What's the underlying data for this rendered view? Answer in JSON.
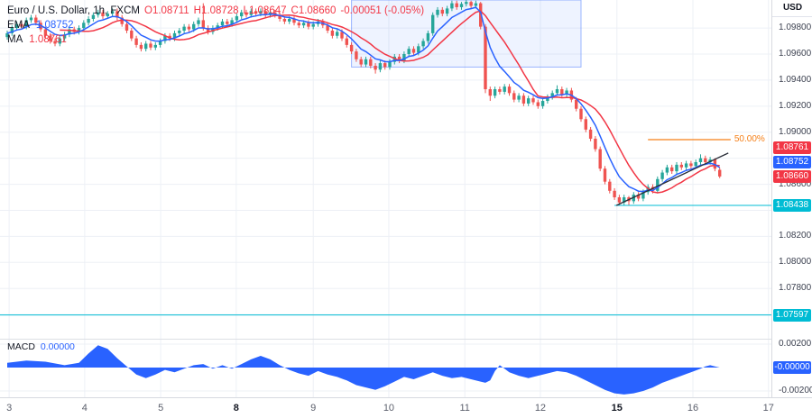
{
  "legend": {
    "title": "Euro / U.S. Dollar, 1h, FXCM",
    "ohlc": [
      "O1.08711",
      "H1.08728",
      "L1.08647",
      "C1.08660",
      "-0.00051 (-0.05%)"
    ],
    "ohlc_color": "#f23645",
    "ema_label": "EMA",
    "ema_value": "1.08752",
    "ema_color": "#2962ff",
    "ma_label": "MA",
    "ma_value": "1.08761",
    "ma_color": "#f23645"
  },
  "price_axis": {
    "currency": "USD",
    "labels": [
      {
        "text": "1.09800",
        "price": 1.098
      },
      {
        "text": "1.09600",
        "price": 1.096
      },
      {
        "text": "1.09400",
        "price": 1.094
      },
      {
        "text": "1.09200",
        "price": 1.092
      },
      {
        "text": "1.09000",
        "price": 1.09
      },
      {
        "text": "1.08800",
        "price": 1.088,
        "hidden": true
      },
      {
        "text": "1.08600",
        "price": 1.086
      },
      {
        "text": "1.08400",
        "price": 1.084,
        "hidden": true
      },
      {
        "text": "1.08200",
        "price": 1.082
      },
      {
        "text": "1.08000",
        "price": 1.08
      },
      {
        "text": "1.07800",
        "price": 1.078
      },
      {
        "text": "1.07600",
        "price": 1.076,
        "hidden": true
      }
    ],
    "tags": [
      {
        "text": "1.08761",
        "price": 1.08761,
        "color": "#f23645",
        "name": "ma-price-tag"
      },
      {
        "text": "1.08752",
        "price": 1.08752,
        "color": "#2962ff",
        "name": "ema-price-tag"
      },
      {
        "text": "1.08660",
        "price": 1.0866,
        "color": "#f23645",
        "name": "last-price-tag"
      },
      {
        "text": "1.08438",
        "price": 1.08438,
        "color": "#00bcd4",
        "name": "horizontal-line-price-tag"
      },
      {
        "text": "1.07597",
        "price": 1.07597,
        "color": "#00bcd4",
        "name": "horizontal-line2-price-tag"
      }
    ]
  },
  "macd_pane": {
    "label": "MACD",
    "value": "0.00000",
    "value_color": "#2962ff",
    "axis_labels": [
      {
        "text": "0.00200",
        "value": 0.002
      },
      {
        "text": "-0.00200",
        "value": -0.002
      }
    ],
    "tag": {
      "text": "-0.00000",
      "value": 0,
      "color": "#2962ff"
    }
  },
  "time_axis": {
    "labels": [
      {
        "text": "3",
        "i": 0.4
      },
      {
        "text": "4",
        "i": 16.2
      },
      {
        "text": "5",
        "i": 32.1
      },
      {
        "text": "8",
        "i": 47.9,
        "bold": true
      },
      {
        "text": "9",
        "i": 64
      },
      {
        "text": "10",
        "i": 79.8
      },
      {
        "text": "11",
        "i": 95.7
      },
      {
        "text": "12",
        "i": 111.5
      },
      {
        "text": "15",
        "i": 127.5,
        "bold": true
      },
      {
        "text": "16",
        "i": 143.4
      },
      {
        "text": "17",
        "i": 159.2
      }
    ]
  },
  "chart_data": {
    "type": "candlestick",
    "symbol": "EUR/USD",
    "interval": "1h",
    "exchange": "FXCM",
    "ylim": [
      1.076,
      1.10015
    ],
    "ema_period": 7,
    "ma_period": 12,
    "colors": {
      "up": "#26a69a",
      "down": "#ef5350",
      "ema": "#2962ff",
      "ma": "#f23645",
      "macd": "#2962ff",
      "grid": "#edf0f6"
    },
    "candles": [
      [
        1.0973,
        1.0978,
        1.0971,
        1.0976
      ],
      [
        1.0976,
        1.0982,
        1.0974,
        1.098
      ],
      [
        1.098,
        1.0985,
        1.0978,
        1.0983
      ],
      [
        1.0983,
        1.0985,
        1.0979,
        1.0981
      ],
      [
        1.0981,
        1.0988,
        1.0979,
        1.0986
      ],
      [
        1.0986,
        1.099,
        1.0984,
        1.0988
      ],
      [
        1.0988,
        1.099,
        1.0982,
        1.0984
      ],
      [
        1.0984,
        1.0986,
        1.0977,
        1.0979
      ],
      [
        1.0979,
        1.0981,
        1.0972,
        1.0974
      ],
      [
        1.0974,
        1.0976,
        1.0968,
        1.097
      ],
      [
        1.097,
        1.0972,
        1.0966,
        1.0968
      ],
      [
        1.0968,
        1.0974,
        1.0966,
        1.0972
      ],
      [
        1.0972,
        1.0977,
        1.097,
        1.0975
      ],
      [
        1.0975,
        1.0981,
        1.0973,
        1.0979
      ],
      [
        1.0979,
        1.0981,
        1.0975,
        1.0977
      ],
      [
        1.0977,
        1.0982,
        1.0975,
        1.098
      ],
      [
        1.098,
        1.0986,
        1.0978,
        1.0984
      ],
      [
        1.0984,
        1.0989,
        1.0982,
        1.0987
      ],
      [
        1.0987,
        1.0992,
        1.0985,
        1.099
      ],
      [
        1.099,
        1.0994,
        1.0988,
        1.0992
      ],
      [
        1.0992,
        1.0994,
        1.0987,
        1.0989
      ],
      [
        1.0989,
        1.0993,
        1.0987,
        1.0991
      ],
      [
        1.0991,
        1.0995,
        1.0989,
        1.0993
      ],
      [
        1.0993,
        1.0995,
        1.0986,
        1.0988
      ],
      [
        1.0988,
        1.099,
        1.0981,
        1.0983
      ],
      [
        1.0983,
        1.0985,
        1.0976,
        1.0978
      ],
      [
        1.0978,
        1.098,
        1.097,
        1.0972
      ],
      [
        1.0972,
        1.0974,
        1.0965,
        1.0967
      ],
      [
        1.0967,
        1.0969,
        1.0962,
        1.0964
      ],
      [
        1.0964,
        1.097,
        1.0962,
        1.0968
      ],
      [
        1.0968,
        1.097,
        1.0963,
        1.0965
      ],
      [
        1.0965,
        1.0969,
        1.0963,
        1.0967
      ],
      [
        1.0967,
        1.0972,
        1.0965,
        1.097
      ],
      [
        1.097,
        1.0976,
        1.0968,
        1.0974
      ],
      [
        1.0974,
        1.0976,
        1.097,
        1.0972
      ],
      [
        1.0972,
        1.0978,
        1.097,
        1.0976
      ],
      [
        1.0976,
        1.098,
        1.0974,
        1.0978
      ],
      [
        1.0978,
        1.0983,
        1.0976,
        1.0981
      ],
      [
        1.0981,
        1.0983,
        1.0977,
        1.0979
      ],
      [
        1.0979,
        1.0985,
        1.0977,
        1.0983
      ],
      [
        1.0983,
        1.0988,
        1.0981,
        1.0986
      ],
      [
        1.0986,
        1.0999,
        1.0978,
        1.098
      ],
      [
        1.098,
        1.0982,
        1.0975,
        1.0977
      ],
      [
        1.0977,
        1.0982,
        1.0975,
        1.098
      ],
      [
        1.098,
        1.0984,
        1.0978,
        1.0982
      ],
      [
        1.0982,
        1.0987,
        1.098,
        1.0985
      ],
      [
        1.0985,
        1.0987,
        1.0981,
        1.0983
      ],
      [
        1.0983,
        1.0988,
        1.0981,
        1.0986
      ],
      [
        1.0986,
        1.0991,
        1.0984,
        1.0989
      ],
      [
        1.0989,
        1.0994,
        1.0987,
        1.0992
      ],
      [
        1.0992,
        1.0994,
        1.0988,
        1.099
      ],
      [
        1.099,
        1.0995,
        1.0988,
        1.0993
      ],
      [
        1.0993,
        1.0995,
        1.0989,
        1.0991
      ],
      [
        1.0991,
        1.0995,
        1.0989,
        1.0993
      ],
      [
        1.0993,
        1.0995,
        1.0988,
        1.099
      ],
      [
        1.099,
        1.0994,
        1.0988,
        1.0992
      ],
      [
        1.0992,
        1.0994,
        1.0988,
        1.099
      ],
      [
        1.099,
        1.0992,
        1.0985,
        1.0987
      ],
      [
        1.0987,
        1.0989,
        1.0983,
        1.0985
      ],
      [
        1.0985,
        1.0989,
        1.0983,
        1.0987
      ],
      [
        1.0987,
        1.0989,
        1.0982,
        1.0984
      ],
      [
        1.0984,
        1.0986,
        1.098,
        1.0982
      ],
      [
        1.0982,
        1.0986,
        1.098,
        1.0984
      ],
      [
        1.0984,
        1.0986,
        1.0979,
        1.0981
      ],
      [
        1.0981,
        1.0985,
        1.0979,
        1.0983
      ],
      [
        1.0983,
        1.0987,
        1.0981,
        1.0985
      ],
      [
        1.0985,
        1.0987,
        1.098,
        1.0982
      ],
      [
        1.0982,
        1.0984,
        1.0976,
        1.0978
      ],
      [
        1.0978,
        1.098,
        1.0972,
        1.0974
      ],
      [
        1.0974,
        1.0979,
        1.0972,
        1.0977
      ],
      [
        1.0977,
        1.0979,
        1.097,
        1.0972
      ],
      [
        1.0972,
        1.0974,
        1.0965,
        1.0967
      ],
      [
        1.0967,
        1.0969,
        1.096,
        1.0962
      ],
      [
        1.0962,
        1.0964,
        1.0954,
        1.0956
      ],
      [
        1.0956,
        1.0958,
        1.095,
        1.0952
      ],
      [
        1.0952,
        1.0958,
        1.095,
        1.0956
      ],
      [
        1.0956,
        1.0958,
        1.0949,
        1.0951
      ],
      [
        1.0951,
        1.0953,
        1.0945,
        1.0948
      ],
      [
        1.0948,
        1.0955,
        1.0946,
        1.0953
      ],
      [
        1.0953,
        1.0955,
        1.0948,
        1.095
      ],
      [
        1.095,
        1.0956,
        1.0948,
        1.0954
      ],
      [
        1.0954,
        1.096,
        1.0952,
        1.0958
      ],
      [
        1.0958,
        1.096,
        1.0953,
        1.0955
      ],
      [
        1.0955,
        1.0962,
        1.0953,
        1.096
      ],
      [
        1.096,
        1.0966,
        1.0958,
        1.0964
      ],
      [
        1.0964,
        1.0966,
        1.0959,
        1.0961
      ],
      [
        1.0961,
        1.0968,
        1.0959,
        1.0966
      ],
      [
        1.0966,
        1.0972,
        1.0964,
        1.097
      ],
      [
        1.097,
        1.0978,
        1.0968,
        1.0976
      ],
      [
        1.0976,
        1.0992,
        1.0974,
        1.099
      ],
      [
        1.099,
        1.0996,
        1.0988,
        1.0994
      ],
      [
        1.0994,
        1.0996,
        1.0989,
        1.0991
      ],
      [
        1.0991,
        1.0997,
        1.0989,
        1.0995
      ],
      [
        1.0995,
        1.1001,
        1.0993,
        1.0999
      ],
      [
        1.0999,
        1.1001,
        1.0994,
        1.0996
      ],
      [
        1.0996,
        1.1,
        1.0994,
        1.09985
      ],
      [
        1.09985,
        1.10015,
        1.09965,
        1.1
      ],
      [
        1.1,
        1.1001,
        1.0995,
        1.0997
      ],
      [
        1.0997,
        1.1001,
        1.0995,
        1.0999
      ],
      [
        1.0999,
        1.1,
        1.0979,
        1.0981
      ],
      [
        1.0981,
        1.0983,
        1.093,
        1.0933
      ],
      [
        1.0933,
        1.0935,
        1.0924,
        1.0928
      ],
      [
        1.0928,
        1.0935,
        1.0926,
        1.0933
      ],
      [
        1.0933,
        1.0935,
        1.0929,
        1.0931
      ],
      [
        1.0931,
        1.0937,
        1.0929,
        1.0935
      ],
      [
        1.0935,
        1.0937,
        1.0928,
        1.093
      ],
      [
        1.093,
        1.0932,
        1.0923,
        1.0925
      ],
      [
        1.0925,
        1.093,
        1.0923,
        1.0928
      ],
      [
        1.0928,
        1.093,
        1.092,
        1.0922
      ],
      [
        1.0922,
        1.0928,
        1.092,
        1.0926
      ],
      [
        1.0926,
        1.0928,
        1.0921,
        1.0923
      ],
      [
        1.0923,
        1.0925,
        1.0918,
        1.092
      ],
      [
        1.092,
        1.0926,
        1.0918,
        1.0924
      ],
      [
        1.0924,
        1.0929,
        1.0922,
        1.0927
      ],
      [
        1.0927,
        1.0932,
        1.0925,
        1.093
      ],
      [
        1.093,
        1.0936,
        1.0928,
        1.0933
      ],
      [
        1.0933,
        1.0935,
        1.0927,
        1.0929
      ],
      [
        1.0929,
        1.0934,
        1.0927,
        1.0932
      ],
      [
        1.0932,
        1.0934,
        1.0923,
        1.0925
      ],
      [
        1.0925,
        1.0927,
        1.0916,
        1.0918
      ],
      [
        1.0918,
        1.092,
        1.0908,
        1.091
      ],
      [
        1.091,
        1.0912,
        1.09,
        1.0902
      ],
      [
        1.0902,
        1.0904,
        1.0893,
        1.0895
      ],
      [
        1.0895,
        1.0897,
        1.0885,
        1.0887
      ],
      [
        1.0887,
        1.0889,
        1.087,
        1.0872
      ],
      [
        1.0872,
        1.0874,
        1.086,
        1.0862
      ],
      [
        1.0862,
        1.0864,
        1.0853,
        1.0855
      ],
      [
        1.0855,
        1.0857,
        1.0848,
        1.085
      ],
      [
        1.085,
        1.0852,
        1.08438,
        1.0846
      ],
      [
        1.0846,
        1.0852,
        1.0844,
        1.085
      ],
      [
        1.085,
        1.0851,
        1.0844,
        1.0847
      ],
      [
        1.0847,
        1.0854,
        1.0845,
        1.0852
      ],
      [
        1.0852,
        1.0854,
        1.0847,
        1.0849
      ],
      [
        1.0849,
        1.0856,
        1.0847,
        1.0854
      ],
      [
        1.0854,
        1.086,
        1.0852,
        1.0858
      ],
      [
        1.0858,
        1.086,
        1.0853,
        1.0855
      ],
      [
        1.0855,
        1.0866,
        1.0853,
        1.0864
      ],
      [
        1.0864,
        1.0871,
        1.0862,
        1.0869
      ],
      [
        1.0869,
        1.0875,
        1.0867,
        1.0873
      ],
      [
        1.0873,
        1.0875,
        1.0868,
        1.087
      ],
      [
        1.087,
        1.0877,
        1.0868,
        1.0875
      ],
      [
        1.0875,
        1.0877,
        1.0871,
        1.0873
      ],
      [
        1.0873,
        1.0878,
        1.0871,
        1.0876
      ],
      [
        1.0876,
        1.0878,
        1.0872,
        1.0874
      ],
      [
        1.0874,
        1.0879,
        1.0872,
        1.0877
      ],
      [
        1.0877,
        1.0883,
        1.0875,
        1.088
      ],
      [
        1.088,
        1.0882,
        1.0875,
        1.0877
      ],
      [
        1.0877,
        1.0881,
        1.0875,
        1.0879
      ],
      [
        1.0879,
        1.088,
        1.087,
        1.0872
      ],
      [
        1.08711,
        1.08728,
        1.08647,
        1.0866
      ]
    ],
    "macd_area": [
      [
        0,
        0.0004
      ],
      [
        4,
        0.0006
      ],
      [
        8,
        0.0005
      ],
      [
        12,
        0.0002
      ],
      [
        15,
        0.0004
      ],
      [
        17,
        0.0012
      ],
      [
        19,
        0.0019
      ],
      [
        21,
        0.0016
      ],
      [
        23,
        0.0008
      ],
      [
        25,
        0.0001
      ],
      [
        27,
        -0.0006
      ],
      [
        29,
        -0.0009
      ],
      [
        31,
        -0.0006
      ],
      [
        33,
        -0.0002
      ],
      [
        35,
        -0.0004
      ],
      [
        37,
        -0.0001
      ],
      [
        39,
        0.0002
      ],
      [
        41,
        0.0003
      ],
      [
        43,
        -0.0001
      ],
      [
        45,
        0.0002
      ],
      [
        47,
        -0.0001
      ],
      [
        49,
        0.0003
      ],
      [
        51,
        0.0007
      ],
      [
        53,
        0.001
      ],
      [
        55,
        0.0007
      ],
      [
        57,
        0.0002
      ],
      [
        59,
        -0.0002
      ],
      [
        61,
        -0.0005
      ],
      [
        63,
        -0.0007
      ],
      [
        65,
        -0.0003
      ],
      [
        67,
        -0.0006
      ],
      [
        69,
        -0.0008
      ],
      [
        71,
        -0.0011
      ],
      [
        73,
        -0.0015
      ],
      [
        75,
        -0.0017
      ],
      [
        77,
        -0.0019
      ],
      [
        79,
        -0.0016
      ],
      [
        81,
        -0.0012
      ],
      [
        83,
        -0.0008
      ],
      [
        85,
        -0.001
      ],
      [
        87,
        -0.0007
      ],
      [
        89,
        -0.0004
      ],
      [
        91,
        -0.0007
      ],
      [
        93,
        -0.0009
      ],
      [
        95,
        -0.0008
      ],
      [
        97,
        -0.001
      ],
      [
        99,
        -0.0012
      ],
      [
        100,
        -0.0013
      ],
      [
        101,
        -0.0011
      ],
      [
        102,
        -0.0003
      ],
      [
        103,
        0.0002
      ],
      [
        104,
        -0.0001
      ],
      [
        105,
        -0.0004
      ],
      [
        107,
        -0.0007
      ],
      [
        109,
        -0.0009
      ],
      [
        111,
        -0.0007
      ],
      [
        113,
        -0.0005
      ],
      [
        115,
        -0.0003
      ],
      [
        117,
        -0.0004
      ],
      [
        119,
        -0.0007
      ],
      [
        121,
        -0.0011
      ],
      [
        123,
        -0.0015
      ],
      [
        125,
        -0.0019
      ],
      [
        127,
        -0.0022
      ],
      [
        129,
        -0.0023
      ],
      [
        131,
        -0.0022
      ],
      [
        133,
        -0.002
      ],
      [
        135,
        -0.0017
      ],
      [
        137,
        -0.0013
      ],
      [
        139,
        -0.001
      ],
      [
        141,
        -0.0007
      ],
      [
        143,
        -0.0004
      ],
      [
        145,
        -0.0001
      ],
      [
        146,
        0.0001
      ],
      [
        147,
        0.0002
      ],
      [
        148,
        0.0001
      ],
      [
        149,
        0
      ]
    ],
    "drawings": {
      "horizontal_lines": [
        {
          "price": 1.08438,
          "from_i": 127,
          "color": "#00bcd4"
        },
        {
          "price": 1.07597,
          "from_i": -2,
          "color": "#00bcd4"
        }
      ],
      "trendline": {
        "i1": 127.4,
        "p1": 1.08438,
        "i2": 150.8,
        "p2": 1.0884,
        "color": "#2a2e39"
      },
      "fib_level": {
        "label": "50.00%",
        "price": 1.08943,
        "from_i": 134,
        "to_i": 151.3,
        "color": "#f57f17"
      },
      "selection_box": {
        "from_i": 72,
        "to_i": 120,
        "p_top": 1.1002,
        "p_bottom": 1.095
      }
    }
  }
}
